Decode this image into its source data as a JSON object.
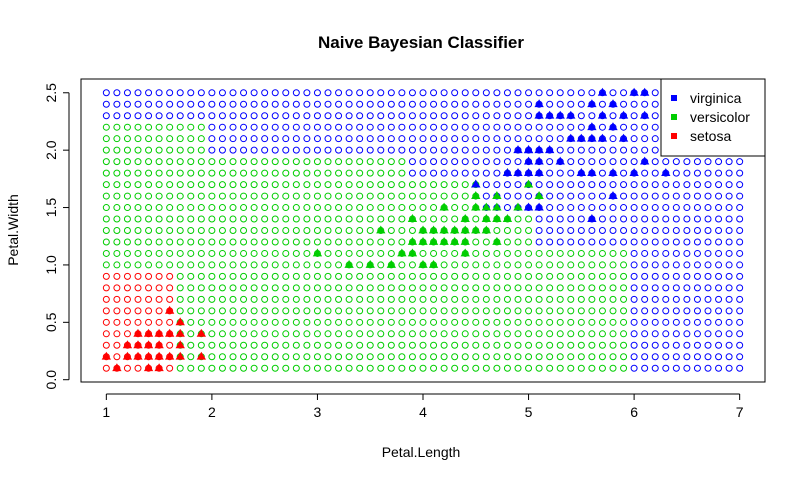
{
  "chart_data": {
    "type": "scatter",
    "title": "Naive Bayesian Classifier",
    "xlabel": "Petal.Length",
    "ylabel": "Petal.Width",
    "xlim": [
      0.76,
      7.24
    ],
    "ylim": [
      -0.02,
      2.62
    ],
    "xticks": [
      "1",
      "2",
      "3",
      "4",
      "5",
      "6",
      "7"
    ],
    "xtick_values": [
      1,
      2,
      3,
      4,
      5,
      6,
      7
    ],
    "yticks": [
      "0.0",
      "0.5",
      "1.0",
      "1.5",
      "2.0",
      "2.5"
    ],
    "ytick_values": [
      0,
      0.5,
      1,
      1.5,
      2,
      2.5
    ],
    "grid": false,
    "legend_position": "top-right",
    "colors": {
      "virginica": "#0000ff",
      "versicolor": "#00cd00",
      "setosa": "#ff0000"
    },
    "legend": [
      {
        "name": "virginica",
        "color": "#0000ff"
      },
      {
        "name": "versicolor",
        "color": "#00cd00"
      },
      {
        "name": "setosa",
        "color": "#ff0000"
      }
    ],
    "decision_grid": {
      "marker": "open-circle",
      "x_start": 1,
      "x_end": 7,
      "x_step": 0.1,
      "y_start": 0.1,
      "y_end": 2.5,
      "y_step": 0.1,
      "setosa_region": {
        "x_max_by_y": [
          [
            0.9,
            1.6
          ],
          [
            0.7,
            1.9
          ],
          [
            0.5,
            2.1
          ],
          [
            0.3,
            2.3
          ]
        ]
      },
      "versicolor_region": {
        "x_max_by_y": [
          [
            0.8,
            5.9
          ],
          [
            1.1,
            5.9
          ],
          [
            1.4,
            5.0
          ],
          [
            1.7,
            4.5
          ],
          [
            1.9,
            3.8
          ],
          [
            2.2,
            1.9
          ]
        ]
      }
    },
    "series": [
      {
        "name": "setosa",
        "marker": "filled-triangle",
        "points": [
          [
            1.0,
            0.2
          ],
          [
            1.1,
            0.1
          ],
          [
            1.2,
            0.2
          ],
          [
            1.3,
            0.2
          ],
          [
            1.3,
            0.3
          ],
          [
            1.3,
            0.4
          ],
          [
            1.4,
            0.1
          ],
          [
            1.4,
            0.2
          ],
          [
            1.4,
            0.3
          ],
          [
            1.5,
            0.1
          ],
          [
            1.5,
            0.2
          ],
          [
            1.5,
            0.3
          ],
          [
            1.5,
            0.4
          ],
          [
            1.6,
            0.2
          ],
          [
            1.6,
            0.4
          ],
          [
            1.6,
            0.6
          ],
          [
            1.7,
            0.2
          ],
          [
            1.7,
            0.3
          ],
          [
            1.7,
            0.4
          ],
          [
            1.7,
            0.5
          ],
          [
            1.9,
            0.2
          ],
          [
            1.9,
            0.4
          ],
          [
            1.4,
            0.4
          ],
          [
            1.2,
            0.3
          ]
        ]
      },
      {
        "name": "versicolor",
        "marker": "filled-triangle",
        "points": [
          [
            3.0,
            1.1
          ],
          [
            3.3,
            1.0
          ],
          [
            3.5,
            1.0
          ],
          [
            3.6,
            1.3
          ],
          [
            3.7,
            1.0
          ],
          [
            3.8,
            1.1
          ],
          [
            3.9,
            1.1
          ],
          [
            3.9,
            1.2
          ],
          [
            3.9,
            1.4
          ],
          [
            4.0,
            1.0
          ],
          [
            4.0,
            1.2
          ],
          [
            4.0,
            1.3
          ],
          [
            4.1,
            1.0
          ],
          [
            4.1,
            1.3
          ],
          [
            4.2,
            1.2
          ],
          [
            4.2,
            1.3
          ],
          [
            4.2,
            1.5
          ],
          [
            4.3,
            1.3
          ],
          [
            4.4,
            1.2
          ],
          [
            4.4,
            1.3
          ],
          [
            4.4,
            1.4
          ],
          [
            4.5,
            1.3
          ],
          [
            4.5,
            1.5
          ],
          [
            4.5,
            1.6
          ],
          [
            4.5,
            1.7
          ],
          [
            4.6,
            1.3
          ],
          [
            4.6,
            1.4
          ],
          [
            4.6,
            1.5
          ],
          [
            4.7,
            1.2
          ],
          [
            4.7,
            1.4
          ],
          [
            4.7,
            1.5
          ],
          [
            4.7,
            1.6
          ],
          [
            4.8,
            1.4
          ],
          [
            4.8,
            1.8
          ],
          [
            4.9,
            1.5
          ],
          [
            5.0,
            1.7
          ],
          [
            5.1,
            1.6
          ],
          [
            4.1,
            1.2
          ],
          [
            4.3,
            1.2
          ],
          [
            4.4,
            1.1
          ]
        ]
      },
      {
        "name": "virginica",
        "marker": "filled-triangle",
        "points": [
          [
            4.5,
            1.7
          ],
          [
            4.8,
            1.8
          ],
          [
            4.9,
            1.8
          ],
          [
            4.9,
            2.0
          ],
          [
            5.0,
            1.5
          ],
          [
            5.0,
            1.8
          ],
          [
            5.0,
            1.9
          ],
          [
            5.0,
            2.0
          ],
          [
            5.1,
            1.5
          ],
          [
            5.1,
            1.8
          ],
          [
            5.1,
            1.9
          ],
          [
            5.1,
            2.0
          ],
          [
            5.1,
            2.3
          ],
          [
            5.1,
            2.4
          ],
          [
            5.2,
            2.0
          ],
          [
            5.2,
            2.3
          ],
          [
            5.3,
            1.9
          ],
          [
            5.3,
            2.3
          ],
          [
            5.4,
            2.1
          ],
          [
            5.4,
            2.3
          ],
          [
            5.5,
            1.8
          ],
          [
            5.5,
            2.1
          ],
          [
            5.6,
            1.4
          ],
          [
            5.6,
            1.8
          ],
          [
            5.6,
            2.1
          ],
          [
            5.6,
            2.2
          ],
          [
            5.6,
            2.4
          ],
          [
            5.7,
            2.1
          ],
          [
            5.7,
            2.3
          ],
          [
            5.7,
            2.5
          ],
          [
            5.8,
            1.6
          ],
          [
            5.8,
            1.8
          ],
          [
            5.8,
            2.2
          ],
          [
            5.9,
            2.1
          ],
          [
            5.9,
            2.3
          ],
          [
            6.0,
            1.8
          ],
          [
            6.0,
            2.5
          ],
          [
            6.1,
            1.9
          ],
          [
            6.1,
            2.3
          ],
          [
            6.1,
            2.5
          ],
          [
            6.3,
            1.8
          ],
          [
            6.4,
            2.0
          ],
          [
            6.6,
            2.1
          ],
          [
            6.7,
            2.0
          ],
          [
            6.7,
            2.2
          ],
          [
            6.9,
            2.3
          ],
          [
            5.0,
            2.0
          ],
          [
            5.5,
            1.8
          ],
          [
            5.8,
            2.4
          ],
          [
            6.3,
            2.2
          ]
        ]
      }
    ]
  }
}
